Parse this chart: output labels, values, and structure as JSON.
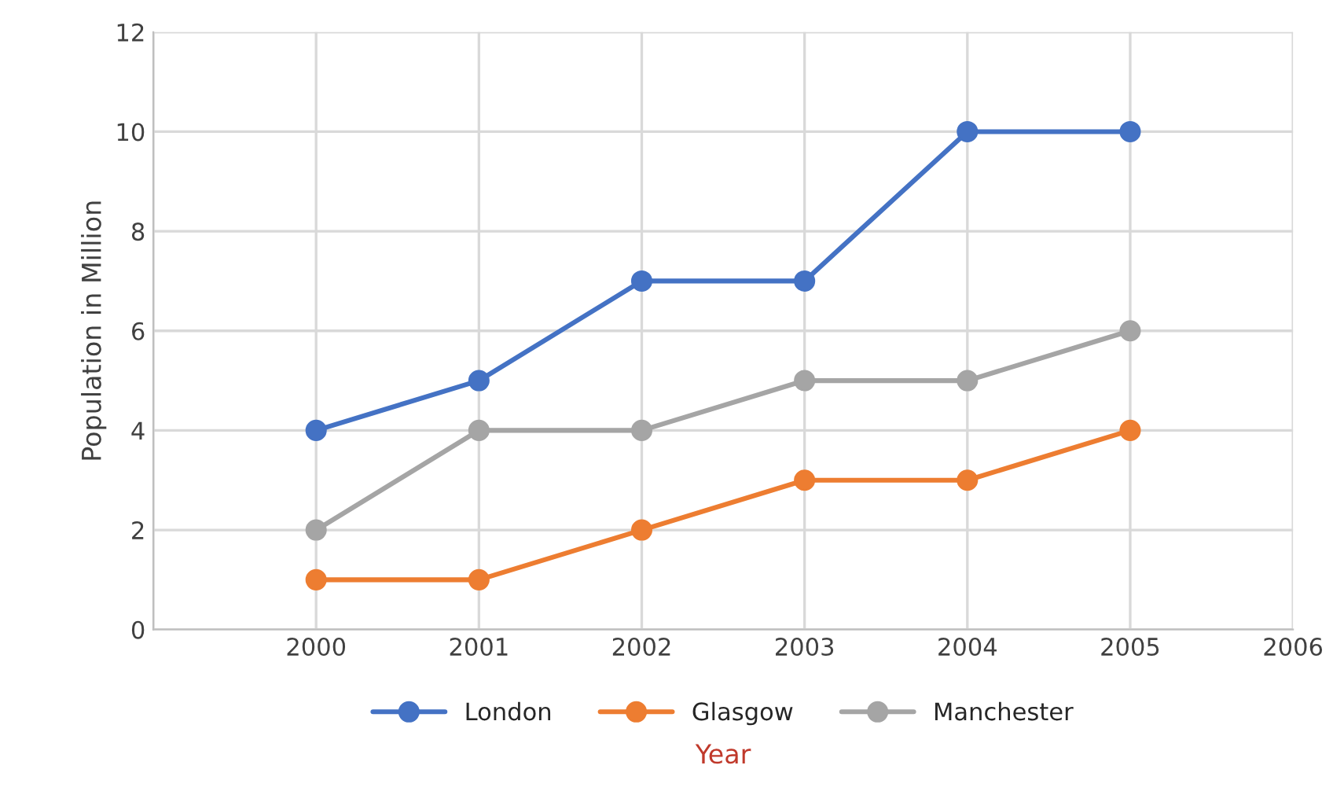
{
  "chart_data": {
    "type": "line",
    "xlabel": "Year",
    "ylabel": "Population in Million",
    "x": [
      2000,
      2001,
      2002,
      2003,
      2004,
      2005
    ],
    "series": [
      {
        "name": "London",
        "color": "#4472c4",
        "values": [
          4,
          5,
          7,
          7,
          10,
          10
        ]
      },
      {
        "name": "Glasgow",
        "color": "#ed7d31",
        "values": [
          1,
          1,
          2,
          3,
          3,
          4
        ]
      },
      {
        "name": "Manchester",
        "color": "#a5a5a5",
        "values": [
          2,
          4,
          4,
          5,
          5,
          6
        ]
      }
    ],
    "xlim": [
      1999,
      2006
    ],
    "xticks": [
      {
        "value": 1999,
        "label": null
      },
      2000,
      2001,
      2002,
      2003,
      2004,
      2005,
      2006
    ],
    "ylim": [
      0,
      12
    ],
    "yticks": [
      0,
      2,
      4,
      6,
      8,
      10,
      12
    ],
    "grid": true,
    "legend": "bottom",
    "marker": "circle",
    "line_style": "solid"
  }
}
